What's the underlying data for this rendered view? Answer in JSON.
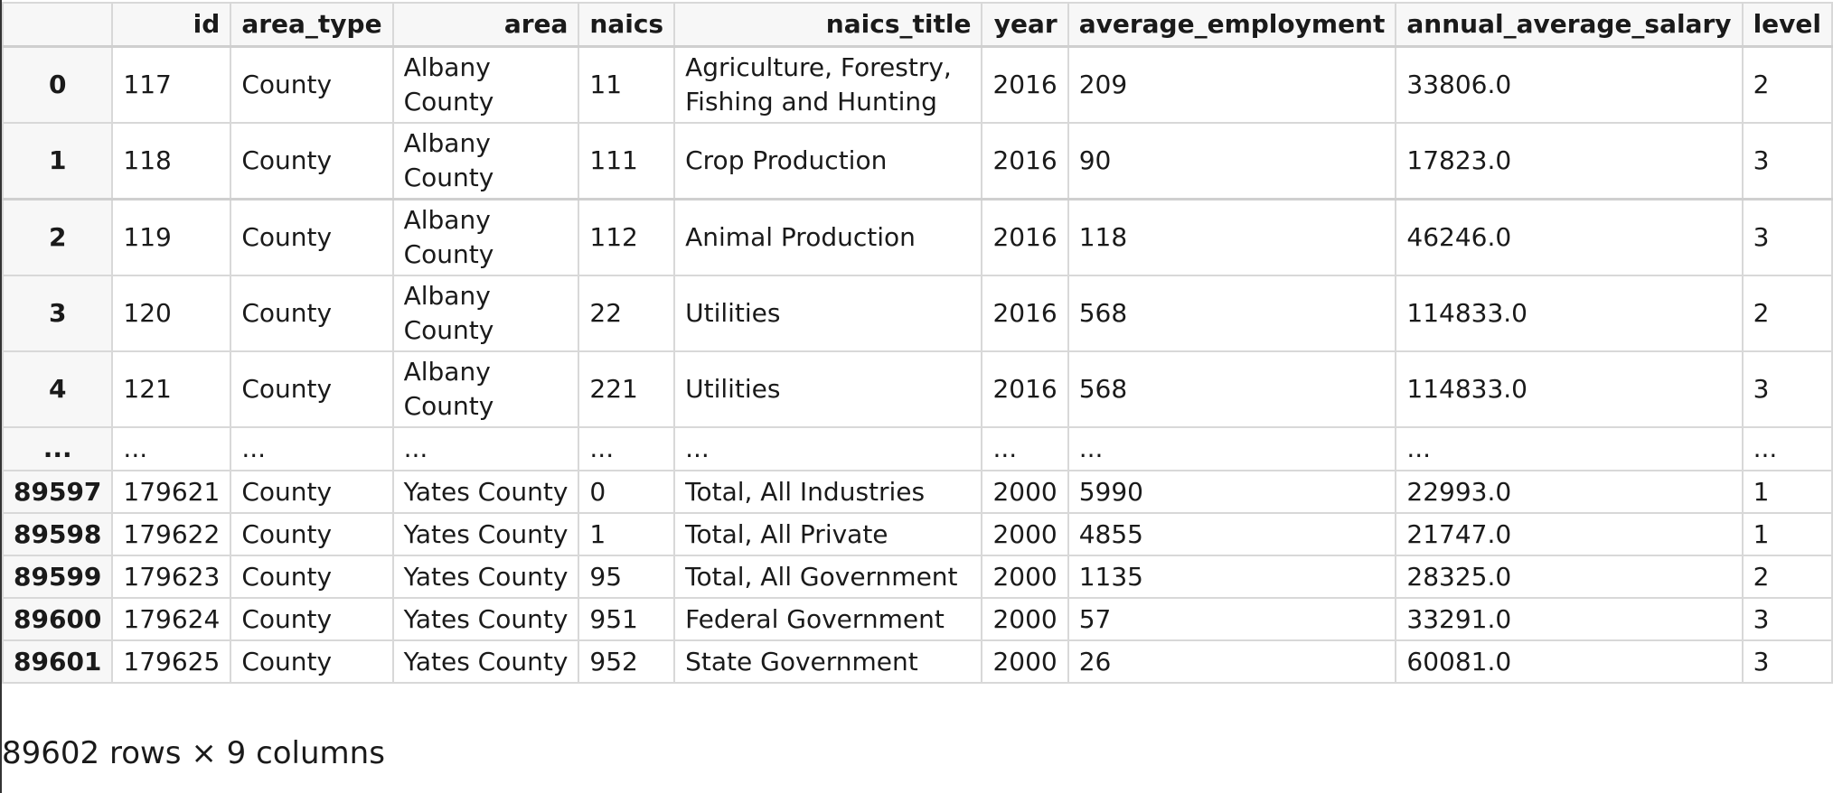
{
  "table": {
    "index_header": "",
    "columns": [
      "id",
      "area_type",
      "area",
      "naics",
      "naics_title",
      "year",
      "average_employment",
      "annual_average_salary",
      "level"
    ],
    "rows": [
      {
        "index": "0",
        "cells": [
          "117",
          "County",
          "Albany County",
          "11",
          "Agriculture, Forestry, Fishing and Hunting",
          "2016",
          "209",
          "33806.0",
          "2"
        ]
      },
      {
        "index": "1",
        "cells": [
          "118",
          "County",
          "Albany County",
          "111",
          "Crop Production",
          "2016",
          "90",
          "17823.0",
          "3"
        ]
      },
      {
        "index": "2",
        "cells": [
          "119",
          "County",
          "Albany County",
          "112",
          "Animal Production",
          "2016",
          "118",
          "46246.0",
          "3"
        ]
      },
      {
        "index": "3",
        "cells": [
          "120",
          "County",
          "Albany County",
          "22",
          "Utilities",
          "2016",
          "568",
          "114833.0",
          "2"
        ]
      },
      {
        "index": "4",
        "cells": [
          "121",
          "County",
          "Albany County",
          "221",
          "Utilities",
          "2016",
          "568",
          "114833.0",
          "3"
        ]
      },
      {
        "index": "...",
        "cells": [
          "...",
          "...",
          "...",
          "...",
          "...",
          "...",
          "...",
          "...",
          "..."
        ]
      },
      {
        "index": "89597",
        "cells": [
          "179621",
          "County",
          "Yates County",
          "0",
          "Total, All Industries",
          "2000",
          "5990",
          "22993.0",
          "1"
        ]
      },
      {
        "index": "89598",
        "cells": [
          "179622",
          "County",
          "Yates County",
          "1",
          "Total, All Private",
          "2000",
          "4855",
          "21747.0",
          "1"
        ]
      },
      {
        "index": "89599",
        "cells": [
          "179623",
          "County",
          "Yates County",
          "95",
          "Total, All Government",
          "2000",
          "1135",
          "28325.0",
          "2"
        ]
      },
      {
        "index": "89600",
        "cells": [
          "179624",
          "County",
          "Yates County",
          "951",
          "Federal Government",
          "2000",
          "57",
          "33291.0",
          "3"
        ]
      },
      {
        "index": "89601",
        "cells": [
          "179625",
          "County",
          "Yates County",
          "952",
          "State Government",
          "2000",
          "26",
          "60081.0",
          "3"
        ]
      }
    ]
  },
  "summary": "89602 rows × 9 columns"
}
